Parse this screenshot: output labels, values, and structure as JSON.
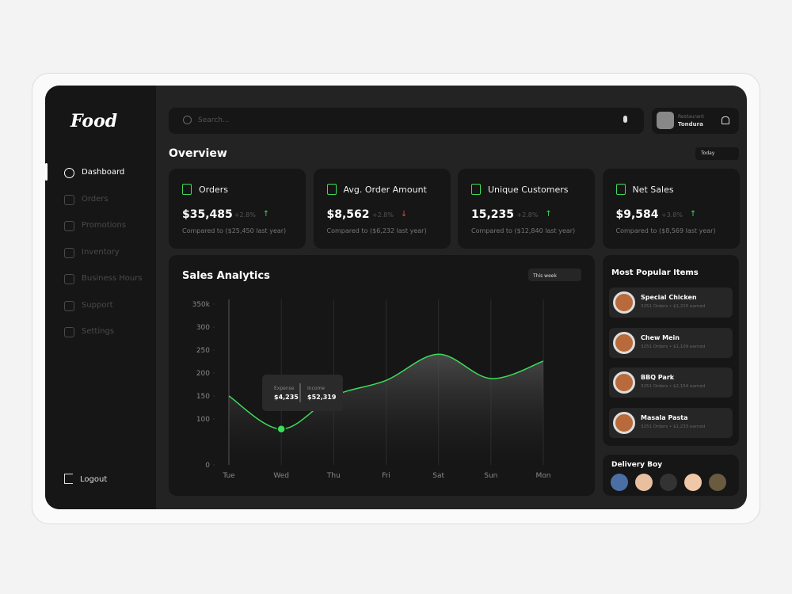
{
  "logo": "Food",
  "nav": [
    "Dashboard",
    "Orders",
    "Promotions",
    "Inventory",
    "Business Hours",
    "Support",
    "Settings"
  ],
  "logout": "Logout",
  "search": "Search...",
  "profile": {
    "role": "Restaurant",
    "name": "Tondura"
  },
  "overview": {
    "title": "Overview",
    "period": "Today"
  },
  "cards": [
    {
      "title": "Orders",
      "value": "$35,485",
      "change": "+2.8%",
      "note": "Compared to ($25,450 last year)",
      "trend": "up"
    },
    {
      "title": "Avg. Order Amount",
      "value": "$8,562",
      "change": "+2.8%",
      "note": "Compared to ($6,232 last year)",
      "trend": "down"
    },
    {
      "title": "Unique Customers",
      "value": "15,235",
      "change": "+2.8%",
      "note": "Compared to ($12,840 last year)",
      "trend": "up"
    },
    {
      "title": "Net Sales",
      "value": "$9,584",
      "change": "+3.8%",
      "note": "Compared to ($8,569 last year)",
      "trend": "up"
    }
  ],
  "popular": {
    "title": "Most Popular Items",
    "items": [
      {
        "name": "Special Chicken",
        "detail": "3251 Orders • $1,215 earned"
      },
      {
        "name": "Chew Mein",
        "detail": "3251 Orders • $1,109 earned"
      },
      {
        "name": "BBQ Park",
        "detail": "3251 Orders • $2,154 earned"
      },
      {
        "name": "Masala Pasta",
        "detail": "3251 Orders • $1,233 earned"
      }
    ]
  },
  "delivery": {
    "title": "Delivery Boy"
  },
  "chart_data": {
    "type": "line",
    "title": "Sales Analytics",
    "period": "This week",
    "categories": [
      "Tue",
      "Wed",
      "Thu",
      "Fri",
      "Sat",
      "Sun",
      "Mon"
    ],
    "values": [
      150,
      78,
      150,
      184,
      241,
      188,
      226
    ],
    "color": "#3ddc5a",
    "ylim": [
      0,
      350
    ],
    "yticks": [
      0,
      100,
      150,
      200,
      250,
      300,
      {
        "value": 350,
        "label": "350k"
      }
    ],
    "tooltip": {
      "expense_label": "Expense",
      "expense": "$4,235",
      "income_label": "Income",
      "income": "$52,319"
    }
  }
}
